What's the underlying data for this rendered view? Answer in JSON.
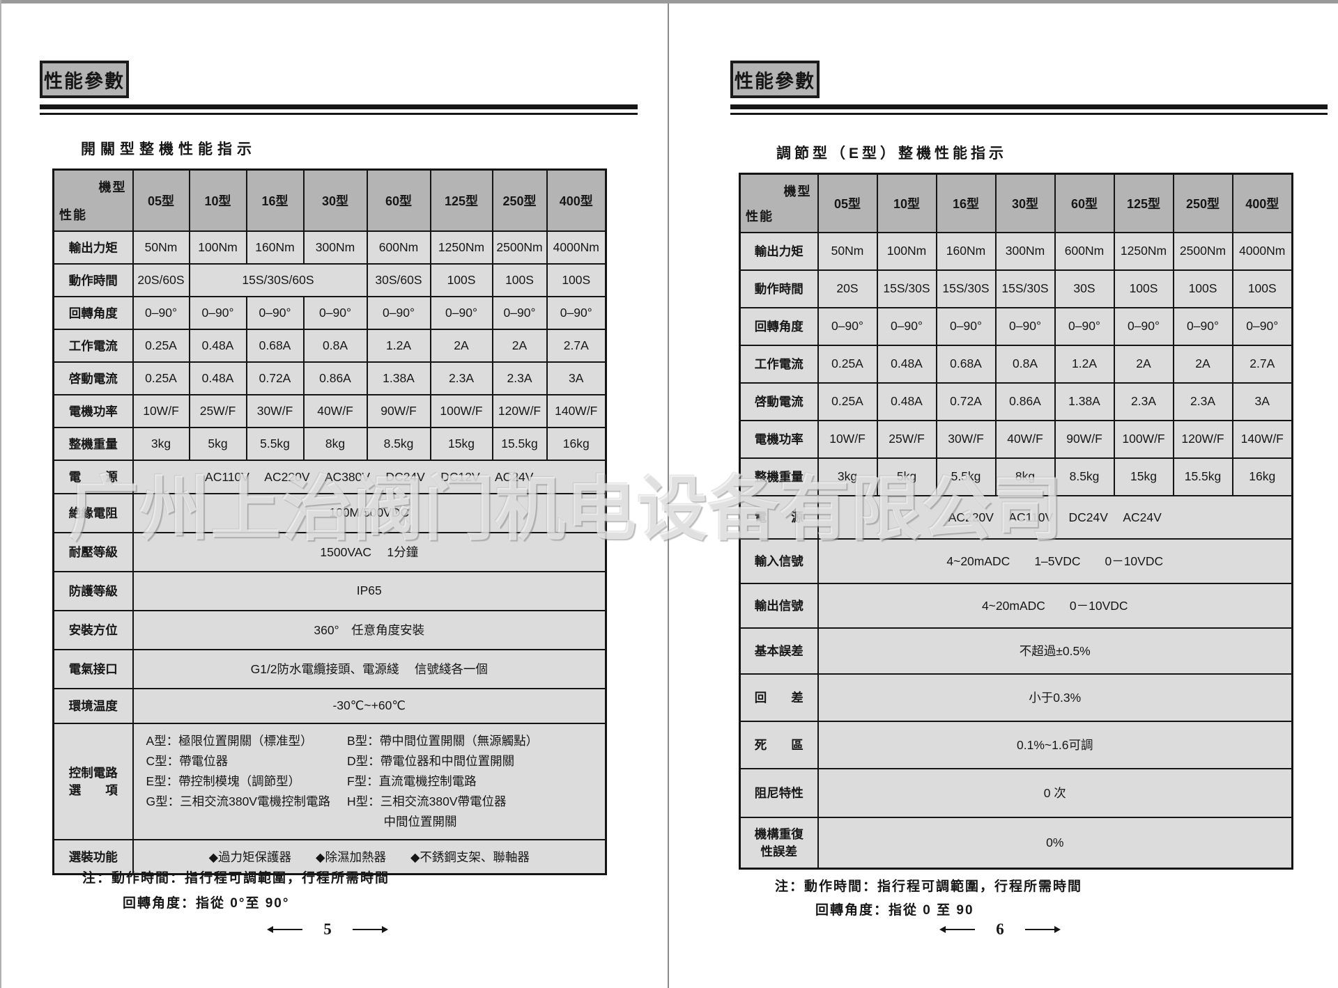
{
  "colors": {
    "header_cell": "#b4b4b4",
    "body_cell": "#dcdcdc",
    "border": "#141414",
    "box_fill": "#c6c6c6"
  },
  "watermark": "广州上治阀门机电设备有限公司",
  "pages": {
    "left": {
      "section_title": "性能參數",
      "table_title": "開關型整機性能指示",
      "corner": {
        "top": "機型",
        "bottom": "性能"
      },
      "columns": [
        "05型",
        "10型",
        "16型",
        "30型",
        "60型",
        "125型",
        "250型",
        "400型"
      ],
      "rows": [
        {
          "label": "輸出力矩",
          "cells": [
            {
              "t": "50Nm"
            },
            {
              "t": "100Nm"
            },
            {
              "t": "160Nm"
            },
            {
              "t": "300Nm"
            },
            {
              "t": "600Nm"
            },
            {
              "t": "1250Nm"
            },
            {
              "t": "2500Nm"
            },
            {
              "t": "4000Nm"
            }
          ]
        },
        {
          "label": "動作時間",
          "cells": [
            {
              "t": "20S/60S"
            },
            {
              "t": "15S/30S/60S",
              "span": 3
            },
            {
              "t": "30S/60S"
            },
            {
              "t": "100S"
            },
            {
              "t": "100S"
            },
            {
              "t": "100S"
            }
          ]
        },
        {
          "label": "回轉角度",
          "cells": [
            {
              "t": "0–90°"
            },
            {
              "t": "0–90°"
            },
            {
              "t": "0–90°"
            },
            {
              "t": "0–90°"
            },
            {
              "t": "0–90°"
            },
            {
              "t": "0–90°"
            },
            {
              "t": "0–90°"
            },
            {
              "t": "0–90°"
            }
          ]
        },
        {
          "label": "工作電流",
          "cells": [
            {
              "t": "0.25A"
            },
            {
              "t": "0.48A"
            },
            {
              "t": "0.68A"
            },
            {
              "t": "0.8A"
            },
            {
              "t": "1.2A"
            },
            {
              "t": "2A"
            },
            {
              "t": "2A"
            },
            {
              "t": "2.7A"
            }
          ]
        },
        {
          "label": "啓動電流",
          "cells": [
            {
              "t": "0.25A"
            },
            {
              "t": "0.48A"
            },
            {
              "t": "0.72A"
            },
            {
              "t": "0.86A"
            },
            {
              "t": "1.38A"
            },
            {
              "t": "2.3A"
            },
            {
              "t": "2.3A"
            },
            {
              "t": "3A"
            }
          ]
        },
        {
          "label": "電機功率",
          "cells": [
            {
              "t": "10W/F"
            },
            {
              "t": "25W/F"
            },
            {
              "t": "30W/F"
            },
            {
              "t": "40W/F"
            },
            {
              "t": "90W/F"
            },
            {
              "t": "100W/F"
            },
            {
              "t": "120W/F"
            },
            {
              "t": "140W/F"
            }
          ]
        },
        {
          "label": "整機重量",
          "cells": [
            {
              "t": "3kg"
            },
            {
              "t": "5kg"
            },
            {
              "t": "5.5kg"
            },
            {
              "t": "8kg"
            },
            {
              "t": "8.5kg"
            },
            {
              "t": "15kg"
            },
            {
              "t": "15.5kg"
            },
            {
              "t": "16kg"
            }
          ]
        },
        {
          "label": "電　　源",
          "cells": [
            {
              "t": "AC110V　 AC220V　 AC380V　 DC24V　 DC12V　 AC24V",
              "span": 8
            }
          ]
        },
        {
          "label": "絶緣電阻",
          "cells": [
            {
              "t": "100M/500VDC",
              "span": 8
            }
          ]
        },
        {
          "label": "耐壓等級",
          "cells": [
            {
              "t": "1500VAC　 1分鐘",
              "span": 8
            }
          ]
        },
        {
          "label": "防護等級",
          "cells": [
            {
              "t": "IP65",
              "span": 8
            }
          ]
        },
        {
          "label": "安裝方位",
          "cells": [
            {
              "t": "360°　任意角度安裝",
              "span": 8
            }
          ]
        },
        {
          "label": "電氣接口",
          "cells": [
            {
              "t": "G1/2防水電纜接頭、電源綫　 信號綫各一個",
              "span": 8
            }
          ]
        },
        {
          "label": "環境温度",
          "cells": [
            {
              "t": "-30℃~+60℃",
              "span": 8
            }
          ]
        },
        {
          "label": "控制電路\n選　　項",
          "cells": [
            {
              "span": 8,
              "columns": [
                [
                  "A型：極限位置開關（標准型）",
                  "C型：帶電位器",
                  "E型：帶控制模塊（調節型）",
                  "G型：三相交流380V電機控制電路"
                ],
                [
                  "B型：帶中間位置開關（無源觸點）",
                  "D型：帶電位器和中間位置開關",
                  "F型：直流電機控制電路",
                  "H型：三相交流380V帶電位器",
                  "　　　中間位置開關"
                ]
              ]
            }
          ]
        },
        {
          "label": "選裝功能",
          "cells": [
            {
              "t": "◆過力矩保護器　　◆除濕加熱器　　◆不銹鋼支架、聯軸器",
              "span": 8
            }
          ]
        }
      ],
      "notes": [
        "注：動作時間：指行程可調範圍，行程所需時間",
        "回轉角度：指從 0°至 90°"
      ],
      "page_number": "5"
    },
    "right": {
      "section_title": "性能參數",
      "table_title": "調節型（E型）整機性能指示",
      "corner": {
        "top": "機型",
        "bottom": "性能"
      },
      "columns": [
        "05型",
        "10型",
        "16型",
        "30型",
        "60型",
        "125型",
        "250型",
        "400型"
      ],
      "rows": [
        {
          "label": "輸出力矩",
          "cells": [
            {
              "t": "50Nm"
            },
            {
              "t": "100Nm"
            },
            {
              "t": "160Nm"
            },
            {
              "t": "300Nm"
            },
            {
              "t": "600Nm"
            },
            {
              "t": "1250Nm"
            },
            {
              "t": "2500Nm"
            },
            {
              "t": "4000Nm"
            }
          ]
        },
        {
          "label": "動作時間",
          "cells": [
            {
              "t": "20S"
            },
            {
              "t": "15S/30S"
            },
            {
              "t": "15S/30S"
            },
            {
              "t": "15S/30S"
            },
            {
              "t": "30S"
            },
            {
              "t": "100S"
            },
            {
              "t": "100S"
            },
            {
              "t": "100S"
            }
          ]
        },
        {
          "label": "回轉角度",
          "cells": [
            {
              "t": "0–90°"
            },
            {
              "t": "0–90°"
            },
            {
              "t": "0–90°"
            },
            {
              "t": "0–90°"
            },
            {
              "t": "0–90°"
            },
            {
              "t": "0–90°"
            },
            {
              "t": "0–90°"
            },
            {
              "t": "0–90°"
            }
          ]
        },
        {
          "label": "工作電流",
          "cells": [
            {
              "t": "0.25A"
            },
            {
              "t": "0.48A"
            },
            {
              "t": "0.68A"
            },
            {
              "t": "0.8A"
            },
            {
              "t": "1.2A"
            },
            {
              "t": "2A"
            },
            {
              "t": "2A"
            },
            {
              "t": "2.7A"
            }
          ]
        },
        {
          "label": "啓動電流",
          "cells": [
            {
              "t": "0.25A"
            },
            {
              "t": "0.48A"
            },
            {
              "t": "0.72A"
            },
            {
              "t": "0.86A"
            },
            {
              "t": "1.38A"
            },
            {
              "t": "2.3A"
            },
            {
              "t": "2.3A"
            },
            {
              "t": "3A"
            }
          ]
        },
        {
          "label": "電機功率",
          "cells": [
            {
              "t": "10W/F"
            },
            {
              "t": "25W/F"
            },
            {
              "t": "30W/F"
            },
            {
              "t": "40W/F"
            },
            {
              "t": "90W/F"
            },
            {
              "t": "100W/F"
            },
            {
              "t": "120W/F"
            },
            {
              "t": "140W/F"
            }
          ]
        },
        {
          "label": "整機重量",
          "cells": [
            {
              "t": "3kg"
            },
            {
              "t": "5kg"
            },
            {
              "t": "5.5kg"
            },
            {
              "t": "8kg"
            },
            {
              "t": "8.5kg"
            },
            {
              "t": "15kg"
            },
            {
              "t": "15.5kg"
            },
            {
              "t": "16kg"
            }
          ]
        },
        {
          "label": "電　　源",
          "cells": [
            {
              "t": "AC220V　 AC110V　 DC24V　 AC24V",
              "span": 8
            }
          ]
        },
        {
          "label": "輸入信號",
          "cells": [
            {
              "t": "4~20mADC　　1–5VDC　　0－10VDC",
              "span": 8
            }
          ]
        },
        {
          "label": "輸出信號",
          "cells": [
            {
              "t": "4~20mADC　　0－10VDC",
              "span": 8
            }
          ]
        },
        {
          "label": "基本誤差",
          "cells": [
            {
              "t": "不超過±0.5%",
              "span": 8
            }
          ]
        },
        {
          "label": "回　　差",
          "cells": [
            {
              "t": "小于0.3%",
              "span": 8
            }
          ]
        },
        {
          "label": "死　　區",
          "cells": [
            {
              "t": "0.1%~1.6可調",
              "span": 8
            }
          ]
        },
        {
          "label": "阻尼特性",
          "cells": [
            {
              "t": "0 次",
              "span": 8
            }
          ]
        },
        {
          "label": "機構重復\n性誤差",
          "cells": [
            {
              "t": "0%",
              "span": 8
            }
          ]
        }
      ],
      "notes": [
        "注：動作時間：指行程可調範圍，行程所需時間",
        "回轉角度：指從 0 至 90"
      ],
      "page_number": "6"
    }
  }
}
